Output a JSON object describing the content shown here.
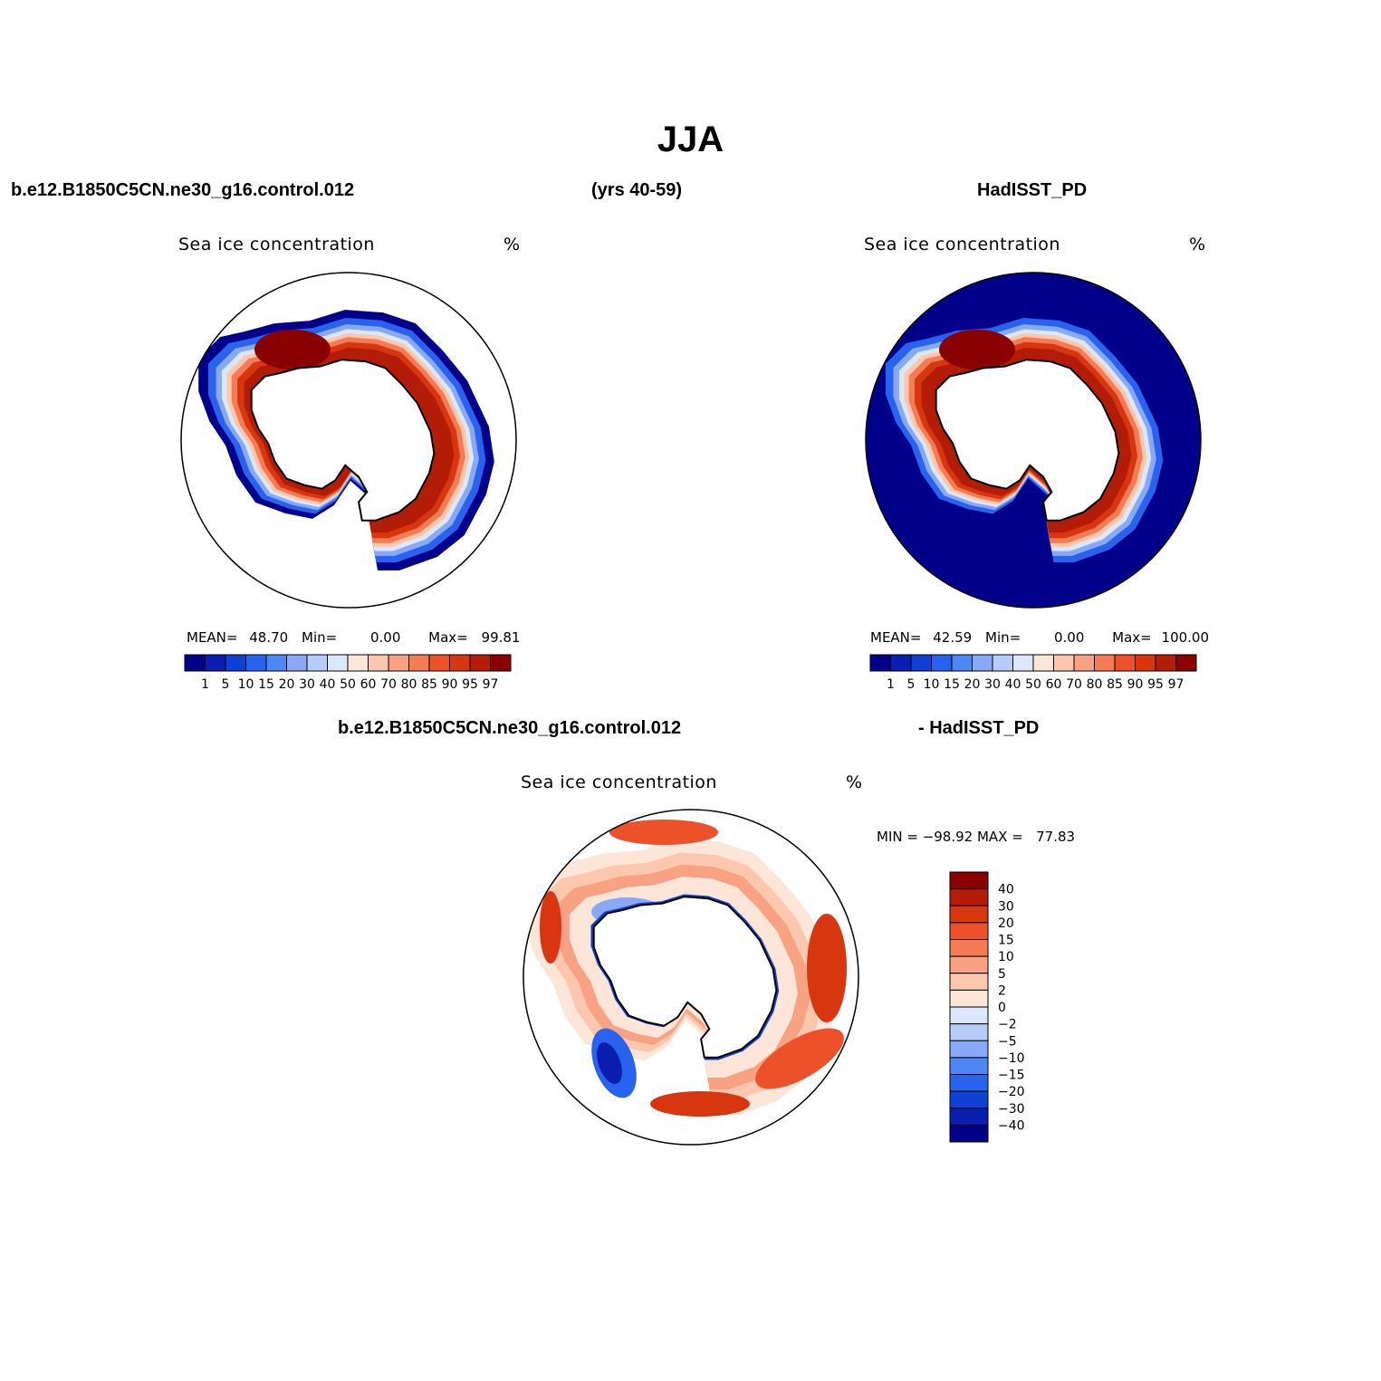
{
  "title": "JJA",
  "header": {
    "case": "b.e12.B1850C5CN.ne30_g16.control.012",
    "years": "(yrs 40-59)",
    "obs": "HadISST_PD",
    "diff_case": "b.e12.B1850C5CN.ne30_g16.control.012",
    "diff_obs": "- HadISST_PD"
  },
  "colors": {
    "abs_levels": [
      "#00008b",
      "#0a1fb0",
      "#1140d4",
      "#2863f0",
      "#4d86f5",
      "#87a9f7",
      "#b5cdf8",
      "#dbe7fb",
      "#fde6d8",
      "#fcc7ad",
      "#f9a283",
      "#f57b55",
      "#ec5129",
      "#d8360f",
      "#b31d08",
      "#8b0000"
    ],
    "diff_levels": [
      "#8b0000",
      "#b31d08",
      "#d8360f",
      "#ec5129",
      "#f57b55",
      "#f9a283",
      "#fcc7ad",
      "#fde6d8",
      "#dbe7fb",
      "#b5cdf8",
      "#87a9f7",
      "#4d86f5",
      "#2863f0",
      "#1140d4",
      "#0a1fb0",
      "#00008b"
    ]
  },
  "panels": {
    "model": {
      "title": "Sea ice concentration",
      "units": "%",
      "mean_label": "MEAN=",
      "mean": "48.70",
      "min_label": "Min=",
      "min": "0.00",
      "max_label": "Max=",
      "max": "99.81",
      "colorbar_labels": [
        "1",
        "5",
        "10",
        "15",
        "20",
        "30",
        "40",
        "50",
        "60",
        "70",
        "80",
        "85",
        "90",
        "95",
        "97"
      ]
    },
    "obs": {
      "title": "Sea ice concentration",
      "units": "%",
      "mean_label": "MEAN=",
      "mean": "42.59",
      "min_label": "Min=",
      "min": "0.00",
      "max_label": "Max=",
      "max": "100.00",
      "colorbar_labels": [
        "1",
        "5",
        "10",
        "15",
        "20",
        "30",
        "40",
        "50",
        "60",
        "70",
        "80",
        "85",
        "90",
        "95",
        "97"
      ]
    },
    "diff": {
      "title": "Sea ice concentration",
      "units": "%",
      "minmax": "MIN = −98.92 MAX =   77.83",
      "colorbar_labels": [
        "40",
        "30",
        "20",
        "15",
        "10",
        "5",
        "2",
        "0",
        "−2",
        "−5",
        "−10",
        "−15",
        "−20",
        "−30",
        "−40"
      ]
    }
  }
}
